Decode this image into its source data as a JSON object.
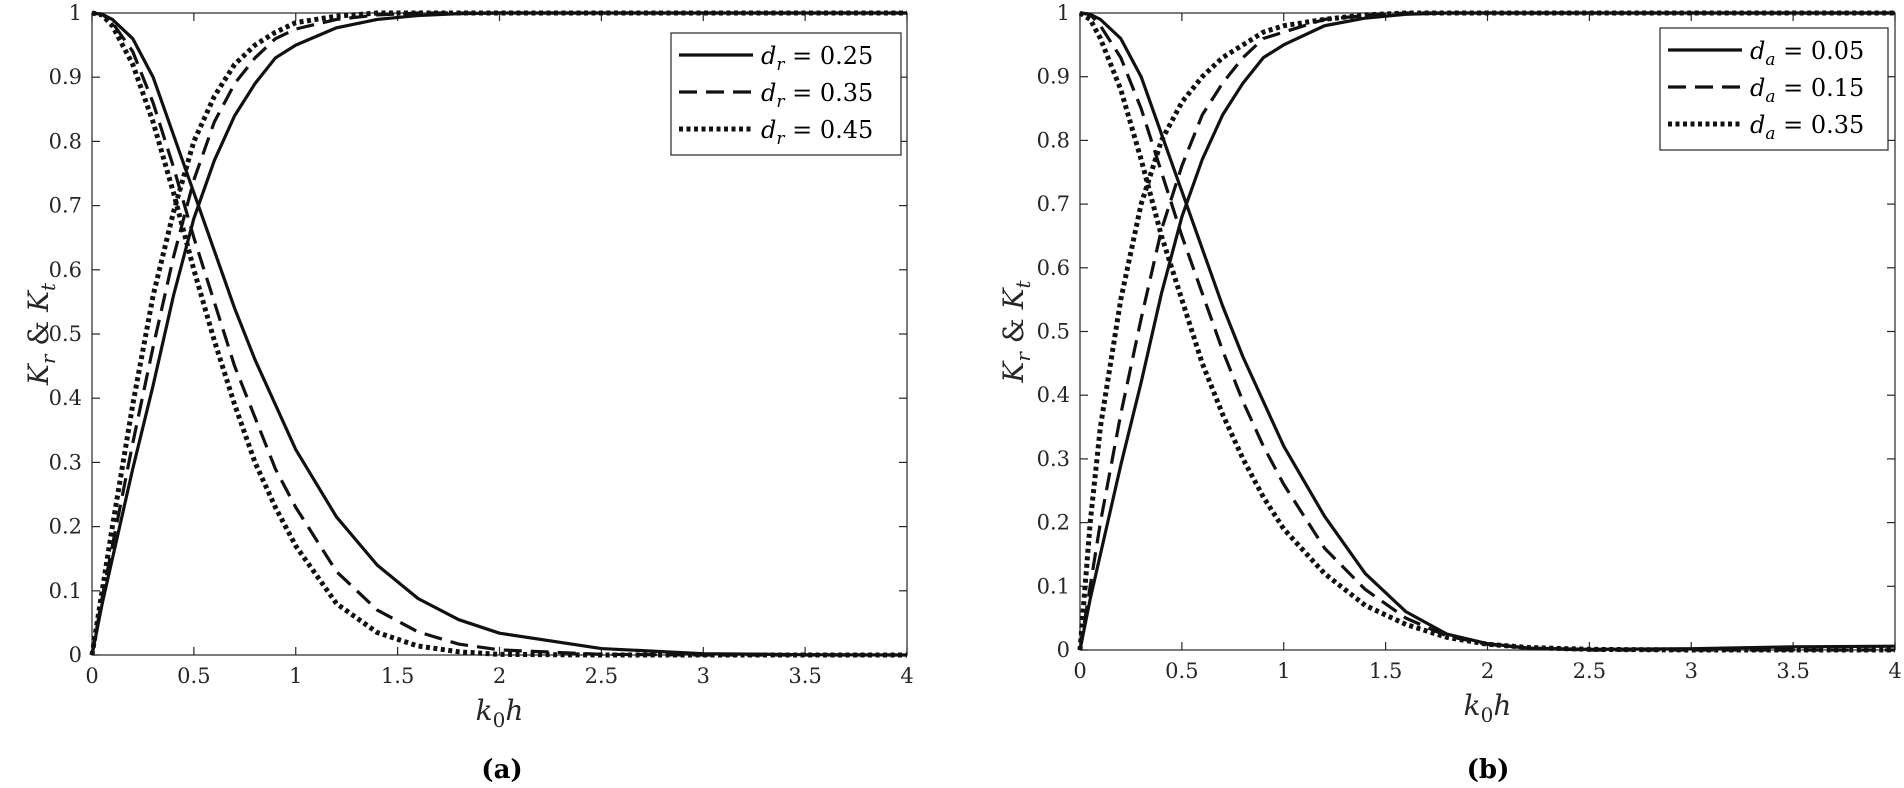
{
  "chart_data": [
    {
      "type": "line",
      "panel_label": "(a)",
      "xlabel": "k0h",
      "ylabel": "Kr & Kt",
      "xlim": [
        0,
        4
      ],
      "ylim": [
        0,
        1
      ],
      "xticks": [
        "0",
        "0.5",
        "1",
        "1.5",
        "2",
        "2.5",
        "3",
        "3.5",
        "4"
      ],
      "yticks": [
        "0",
        "0.1",
        "0.2",
        "0.3",
        "0.4",
        "0.5",
        "0.6",
        "0.7",
        "0.8",
        "0.9",
        "1"
      ],
      "grid": false,
      "legend_position": "top-right",
      "legend_symbol": "d",
      "legend_subscript": "r",
      "series": [
        {
          "name": "d_r = 0.25",
          "param": "0.25",
          "style": "solid",
          "x": [
            0,
            0.05,
            0.1,
            0.2,
            0.3,
            0.4,
            0.5,
            0.6,
            0.7,
            0.8,
            0.9,
            1.0,
            1.2,
            1.4,
            1.6,
            1.8,
            2.0,
            2.5,
            3.0,
            3.5,
            4.0
          ],
          "kr": [
            1,
            0.998,
            0.99,
            0.96,
            0.9,
            0.81,
            0.72,
            0.63,
            0.54,
            0.46,
            0.39,
            0.32,
            0.215,
            0.14,
            0.088,
            0.055,
            0.034,
            0.01,
            0.002,
            0.0005,
            0
          ],
          "kt": [
            0,
            0.08,
            0.15,
            0.29,
            0.42,
            0.56,
            0.68,
            0.77,
            0.84,
            0.89,
            0.93,
            0.95,
            0.977,
            0.99,
            0.996,
            0.999,
            1,
            1,
            1,
            1,
            1
          ]
        },
        {
          "name": "d_r = 0.35",
          "param": "0.35",
          "style": "dashed",
          "x": [
            0,
            0.05,
            0.1,
            0.2,
            0.3,
            0.4,
            0.5,
            0.6,
            0.7,
            0.8,
            0.9,
            1.0,
            1.2,
            1.4,
            1.6,
            1.8,
            2.0,
            2.5,
            3.0,
            3.5,
            4.0
          ],
          "kr": [
            1,
            0.998,
            0.985,
            0.94,
            0.86,
            0.76,
            0.65,
            0.55,
            0.45,
            0.37,
            0.29,
            0.23,
            0.13,
            0.07,
            0.036,
            0.017,
            0.008,
            0.001,
            0,
            0,
            0
          ],
          "kt": [
            0,
            0.09,
            0.17,
            0.33,
            0.48,
            0.62,
            0.74,
            0.83,
            0.89,
            0.93,
            0.96,
            0.975,
            0.99,
            0.997,
            1,
            1,
            1,
            1,
            1,
            1,
            1
          ]
        },
        {
          "name": "d_r = 0.45",
          "param": "0.45",
          "style": "dotted",
          "x": [
            0,
            0.05,
            0.1,
            0.2,
            0.3,
            0.4,
            0.5,
            0.6,
            0.7,
            0.8,
            0.9,
            1.0,
            1.2,
            1.4,
            1.6,
            1.8,
            2.0,
            2.5,
            3.0,
            3.5,
            4.0
          ],
          "kr": [
            1,
            0.997,
            0.98,
            0.92,
            0.83,
            0.72,
            0.6,
            0.49,
            0.39,
            0.3,
            0.23,
            0.17,
            0.08,
            0.035,
            0.014,
            0.005,
            0.001,
            0,
            0,
            0,
            0
          ],
          "kt": [
            0,
            0.1,
            0.2,
            0.39,
            0.56,
            0.69,
            0.8,
            0.87,
            0.92,
            0.95,
            0.97,
            0.985,
            0.995,
            1,
            1,
            1,
            1,
            1,
            1,
            1,
            1
          ]
        }
      ]
    },
    {
      "type": "line",
      "panel_label": "(b)",
      "xlabel": "k0h",
      "ylabel": "Kr & Kt",
      "xlim": [
        0,
        4
      ],
      "ylim": [
        0,
        1
      ],
      "xticks": [
        "0",
        "0.5",
        "1",
        "1.5",
        "2",
        "2.5",
        "3",
        "3.5",
        "4"
      ],
      "yticks": [
        "0",
        "0.1",
        "0.2",
        "0.3",
        "0.4",
        "0.5",
        "0.6",
        "0.7",
        "0.8",
        "0.9",
        "1"
      ],
      "grid": false,
      "legend_position": "top-right",
      "legend_symbol": "d",
      "legend_subscript": "a",
      "series": [
        {
          "name": "d_a = 0.05",
          "param": "0.05",
          "style": "solid",
          "x": [
            0,
            0.05,
            0.1,
            0.2,
            0.3,
            0.4,
            0.5,
            0.6,
            0.7,
            0.8,
            0.9,
            1.0,
            1.2,
            1.4,
            1.6,
            1.8,
            2.0,
            2.2,
            2.5,
            3.0,
            3.5,
            4.0
          ],
          "kr": [
            1,
            0.998,
            0.99,
            0.96,
            0.9,
            0.81,
            0.72,
            0.63,
            0.54,
            0.46,
            0.39,
            0.32,
            0.21,
            0.12,
            0.06,
            0.025,
            0.01,
            0.003,
            0.001,
            0.002,
            0.005,
            0.006
          ],
          "kt": [
            0,
            0.08,
            0.15,
            0.29,
            0.42,
            0.56,
            0.68,
            0.77,
            0.84,
            0.89,
            0.93,
            0.95,
            0.98,
            0.992,
            0.998,
            1,
            1,
            1,
            1,
            1,
            1,
            1
          ]
        },
        {
          "name": "d_a = 0.15",
          "param": "0.15",
          "style": "dashed",
          "x": [
            0,
            0.05,
            0.1,
            0.2,
            0.3,
            0.4,
            0.5,
            0.6,
            0.7,
            0.8,
            0.9,
            1.0,
            1.2,
            1.4,
            1.6,
            1.8,
            2.0,
            2.2,
            2.5,
            3.0,
            3.5,
            4.0
          ],
          "kr": [
            1,
            0.998,
            0.98,
            0.93,
            0.85,
            0.75,
            0.65,
            0.56,
            0.47,
            0.39,
            0.32,
            0.26,
            0.16,
            0.095,
            0.05,
            0.022,
            0.009,
            0.003,
            0,
            0,
            0,
            0
          ],
          "kt": [
            0,
            0.1,
            0.2,
            0.37,
            0.52,
            0.66,
            0.76,
            0.84,
            0.89,
            0.93,
            0.96,
            0.97,
            0.99,
            0.996,
            1,
            1,
            1,
            1,
            1,
            1,
            1,
            1
          ]
        },
        {
          "name": "d_a = 0.35",
          "param": "0.35",
          "style": "dotted",
          "x": [
            0,
            0.05,
            0.1,
            0.2,
            0.3,
            0.4,
            0.5,
            0.6,
            0.7,
            0.8,
            0.9,
            1.0,
            1.2,
            1.4,
            1.6,
            1.8,
            2.0,
            2.2,
            2.5,
            3.0,
            3.5,
            4.0
          ],
          "kr": [
            1,
            0.99,
            0.96,
            0.88,
            0.77,
            0.65,
            0.55,
            0.45,
            0.37,
            0.3,
            0.24,
            0.19,
            0.12,
            0.07,
            0.04,
            0.02,
            0.009,
            0.004,
            0.001,
            0,
            0,
            0
          ],
          "kt": [
            0,
            0.2,
            0.35,
            0.55,
            0.7,
            0.8,
            0.86,
            0.9,
            0.93,
            0.95,
            0.97,
            0.98,
            0.99,
            0.997,
            1,
            1,
            1,
            1,
            1,
            1,
            1,
            1
          ]
        }
      ]
    }
  ]
}
